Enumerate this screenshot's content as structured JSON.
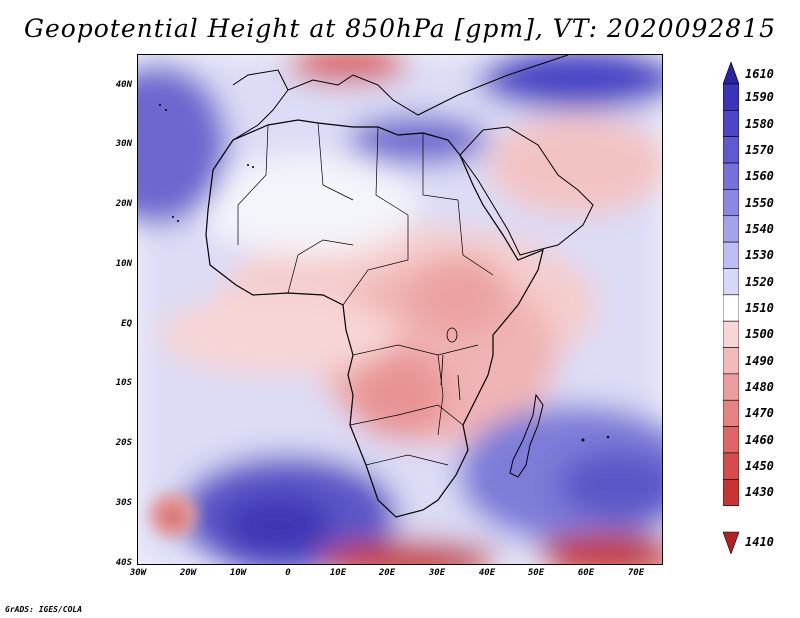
{
  "title": "Geopotential Height at 850hPa [gpm], VT: 2020092815",
  "credit": "GrADS: IGES/COLA",
  "map": {
    "lat_labels": [
      "40N",
      "30N",
      "20N",
      "10N",
      "EQ",
      "10S",
      "20S",
      "30S",
      "40S"
    ],
    "lon_labels": [
      "30W",
      "20W",
      "10W",
      "0",
      "10E",
      "20E",
      "30E",
      "40E",
      "50E",
      "60E",
      "70E"
    ],
    "lon_range": [
      -30,
      75
    ],
    "lat_range": [
      -40,
      45
    ]
  },
  "colorbar": {
    "levels": [
      "1610",
      "1590",
      "1580",
      "1570",
      "1560",
      "1550",
      "1540",
      "1530",
      "1520",
      "1510",
      "1500",
      "1490",
      "1480",
      "1470",
      "1460",
      "1450",
      "1430",
      "1410"
    ],
    "colors": [
      "#2a23a3",
      "#3a35b8",
      "#4b46c6",
      "#5e5ad0",
      "#7471da",
      "#8a88e2",
      "#a3a3ea",
      "#bcbef2",
      "#d6d8f8",
      "#ffffff",
      "#f8d6d6",
      "#f3baba",
      "#ec9e9e",
      "#e58282",
      "#de6666",
      "#d44c4c",
      "#c73434",
      "#b22222"
    ]
  }
}
